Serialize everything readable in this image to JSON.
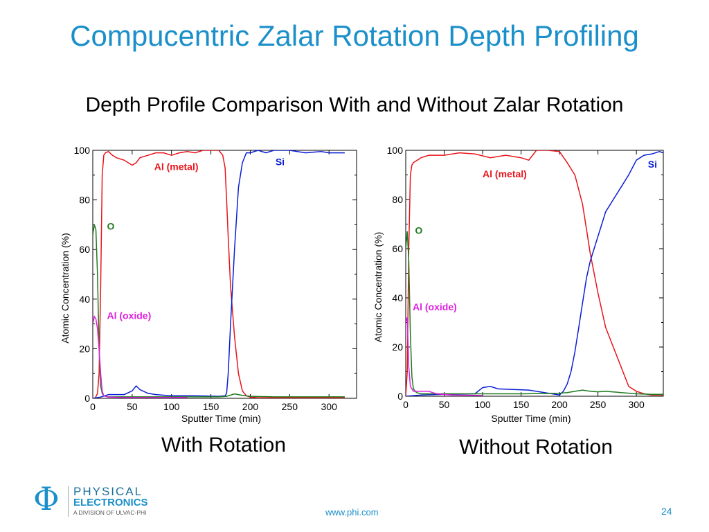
{
  "slide": {
    "title": "Compucentric Zalar Rotation Depth Profiling",
    "subtitle": "Depth Profile Comparison With and Without Zalar Rotation",
    "caption_left": "With Rotation",
    "caption_right": "Without Rotation",
    "footer_url": "www.phi.com",
    "page_number": "24"
  },
  "logo": {
    "symbol": "Φ",
    "line1": "PHYSICAL",
    "line2": "ELECTRONICS",
    "line3": "A DIVISION OF ULVAC-PHI"
  },
  "colors": {
    "title": "#1a8fc9",
    "al_metal": "#e8141b",
    "si": "#0a1ed6",
    "o": "#1e7a1e",
    "al_oxide": "#e020e0"
  },
  "chart_data": [
    {
      "type": "line",
      "title": "With Rotation",
      "xlabel": "Sputter Time (min)",
      "ylabel": "Atomic Concentration (%)",
      "xlim": [
        0,
        335
      ],
      "ylim": [
        0,
        100
      ],
      "xticks": [
        0,
        50,
        100,
        150,
        200,
        250,
        300
      ],
      "yticks": [
        0,
        20,
        40,
        60,
        80,
        100
      ],
      "grid": false,
      "series": [
        {
          "name": "Al (metal)",
          "color": "#e8141b",
          "label_pos": [
            78,
            92
          ],
          "x": [
            0,
            3,
            6,
            8,
            10,
            12,
            14,
            16,
            20,
            25,
            30,
            40,
            50,
            55,
            60,
            70,
            80,
            90,
            100,
            110,
            120,
            130,
            140,
            150,
            160,
            165,
            168,
            170,
            172,
            175,
            180,
            185,
            190,
            195,
            200,
            210,
            250,
            300,
            320
          ],
          "y": [
            0,
            0,
            2,
            10,
            45,
            90,
            98,
            99,
            99.5,
            98,
            97,
            96,
            94,
            95,
            97,
            98,
            99,
            99,
            98,
            99,
            99.5,
            99,
            100,
            100,
            100,
            98,
            93,
            80,
            65,
            45,
            25,
            10,
            3,
            1,
            0.5,
            0.2,
            0.2,
            0.2,
            0.2
          ]
        },
        {
          "name": "Si",
          "color": "#0a1ed6",
          "label_pos": [
            232,
            94
          ],
          "x": [
            0,
            10,
            20,
            40,
            50,
            55,
            60,
            70,
            80,
            100,
            130,
            160,
            168,
            170,
            172,
            175,
            180,
            185,
            190,
            195,
            200,
            210,
            220,
            230,
            250,
            270,
            290,
            300,
            320
          ],
          "y": [
            0,
            0.5,
            1.5,
            1.5,
            3,
            5,
            3.5,
            2,
            1.5,
            1,
            1,
            0.8,
            1,
            2,
            10,
            30,
            60,
            85,
            95,
            99,
            99,
            100,
            99,
            100,
            100,
            99,
            99.5,
            99,
            99
          ]
        },
        {
          "name": "O",
          "color": "#1e7a1e",
          "label_pos": [
            18,
            68
          ],
          "x": [
            0,
            2,
            4,
            6,
            8,
            10,
            12,
            14,
            16,
            20,
            40,
            80,
            120,
            160,
            170,
            180,
            190,
            200,
            230,
            270,
            300,
            320
          ],
          "y": [
            66,
            70,
            68,
            50,
            20,
            5,
            2,
            1,
            0.8,
            0.6,
            0.6,
            0.6,
            0.6,
            0.6,
            0.8,
            1.8,
            1.2,
            0.8,
            0.6,
            0.6,
            0.6,
            0.6
          ]
        },
        {
          "name": "Al (oxide)",
          "color": "#e020e0",
          "label_pos": [
            18,
            32
          ],
          "x": [
            0,
            2,
            4,
            6,
            8,
            10,
            12,
            14,
            20,
            40,
            80,
            120
          ],
          "y": [
            30,
            33,
            32,
            28,
            20,
            10,
            3,
            1,
            0.5,
            0.3,
            0.3,
            0.3
          ]
        }
      ]
    },
    {
      "type": "line",
      "title": "Without Rotation",
      "xlabel": "Sputter Time (min)",
      "ylabel": "Atomic Concentration (%)",
      "xlim": [
        0,
        335
      ],
      "ylim": [
        0,
        100
      ],
      "xticks": [
        0,
        50,
        100,
        150,
        200,
        250,
        300
      ],
      "yticks": [
        0,
        20,
        40,
        60,
        80,
        100
      ],
      "grid": false,
      "series": [
        {
          "name": "Al (metal)",
          "color": "#e8141b",
          "label_pos": [
            100,
            89
          ],
          "x": [
            0,
            2,
            4,
            6,
            8,
            10,
            15,
            20,
            30,
            50,
            70,
            90,
            110,
            130,
            150,
            160,
            170,
            185,
            200,
            210,
            220,
            230,
            235,
            240,
            245,
            250,
            260,
            270,
            280,
            290,
            300,
            310,
            320,
            335
          ],
          "y": [
            0,
            10,
            60,
            90,
            94,
            95,
            96,
            97,
            98,
            98,
            99,
            98.5,
            97,
            98,
            97,
            96,
            100,
            100,
            99.5,
            95,
            90,
            78,
            68,
            58,
            50,
            42,
            28,
            20,
            12,
            4,
            2,
            1,
            0.5,
            0.5
          ]
        },
        {
          "name": "Si",
          "color": "#0a1ed6",
          "label_pos": [
            315,
            93
          ],
          "x": [
            0,
            20,
            50,
            90,
            100,
            110,
            120,
            160,
            200,
            205,
            210,
            215,
            220,
            225,
            230,
            235,
            240,
            245,
            250,
            255,
            260,
            270,
            280,
            290,
            300,
            310,
            320,
            330,
            335
          ],
          "y": [
            0,
            0.5,
            0.8,
            1,
            3.5,
            4,
            3,
            2.5,
            0.5,
            2,
            5,
            10,
            18,
            28,
            38,
            48,
            55,
            60,
            65,
            70,
            75,
            80,
            85,
            90,
            96,
            98,
            98.5,
            99.5,
            99
          ]
        },
        {
          "name": "O",
          "color": "#1e7a1e",
          "label_pos": [
            12,
            66
          ],
          "x": [
            0,
            2,
            4,
            6,
            8,
            10,
            14,
            20,
            60,
            100,
            150,
            200,
            210,
            220,
            230,
            240,
            250,
            260,
            280,
            300,
            320,
            335
          ],
          "y": [
            60,
            67,
            55,
            25,
            8,
            3,
            1.5,
            1,
            1,
            1,
            1,
            1.2,
            1.5,
            2,
            2.5,
            2,
            1.8,
            2,
            1.5,
            1,
            0.8,
            0.8
          ]
        },
        {
          "name": "Al (oxide)",
          "color": "#e020e0",
          "label_pos": [
            9,
            35
          ],
          "x": [
            0,
            2,
            4,
            6,
            10,
            20,
            30,
            40,
            60,
            100
          ],
          "y": [
            30,
            32,
            12,
            4,
            2,
            2,
            2,
            1,
            0.5,
            0.3
          ]
        }
      ]
    }
  ]
}
